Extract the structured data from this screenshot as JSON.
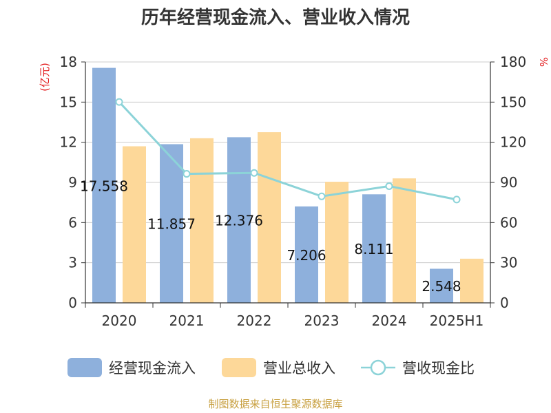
{
  "chart_data": {
    "type": "bar",
    "title": "历年经营现金流入、营业收入情况",
    "categories": [
      "2020",
      "2021",
      "2022",
      "2023",
      "2024",
      "2025H1"
    ],
    "y_left": {
      "unit": "(亿元)",
      "range": [
        0,
        18
      ],
      "ticks": [
        0,
        3,
        6,
        9,
        12,
        15,
        18
      ]
    },
    "y_right": {
      "unit": "%",
      "range": [
        0,
        180
      ],
      "ticks": [
        0,
        30,
        60,
        90,
        120,
        150,
        180
      ]
    },
    "series": [
      {
        "name": "经营现金流入",
        "type": "bar",
        "axis": "left",
        "color": "#8eb0dc",
        "values": [
          17.558,
          11.857,
          12.376,
          7.206,
          8.111,
          2.548
        ],
        "labels": [
          "17.558",
          "11.857",
          "12.376",
          "7.206",
          "8.111",
          "2.548"
        ]
      },
      {
        "name": "营业总收入",
        "type": "bar",
        "axis": "left",
        "color": "#fdd899",
        "values": [
          11.7,
          12.3,
          12.75,
          9.05,
          9.3,
          3.3
        ]
      },
      {
        "name": "营收现金比",
        "type": "line",
        "axis": "right",
        "color": "#8cd3d8",
        "values": [
          150.1,
          96.4,
          97.1,
          79.6,
          87.2,
          77.2
        ]
      }
    ],
    "grid": true,
    "legend": "bottom"
  },
  "source": "制图数据来自恒生聚源数据库"
}
